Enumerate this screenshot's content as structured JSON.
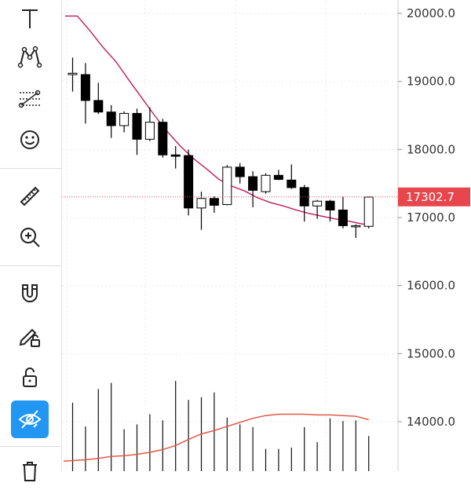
{
  "toolbar": {
    "tools": [
      {
        "name": "text-tool",
        "icon": "text-icon",
        "active": false
      },
      {
        "name": "pattern-tool",
        "icon": "xabcd-pattern-icon",
        "active": false
      },
      {
        "name": "prediction-tool",
        "icon": "forecast-icon",
        "active": false
      },
      {
        "name": "emoji-tool",
        "icon": "smiley-icon",
        "active": false
      },
      {
        "name": "measure-tool",
        "icon": "ruler-icon",
        "active": false
      },
      {
        "name": "zoom-tool",
        "icon": "zoom-in-icon",
        "active": false
      },
      {
        "name": "magnet-tool",
        "icon": "magnet-icon",
        "active": false
      },
      {
        "name": "lock-drawings-tool",
        "icon": "pencil-lock-icon",
        "active": false
      },
      {
        "name": "lock-all-tool",
        "icon": "unlock-icon",
        "active": false
      },
      {
        "name": "hide-drawings-tool",
        "icon": "eye-off-icon",
        "active": true
      },
      {
        "name": "delete-tool",
        "icon": "trash-icon",
        "active": false
      }
    ],
    "accent_color": "#2196f3"
  },
  "chart_data": {
    "type": "candlestick",
    "y_ticks": [
      "20000.0",
      "19000.0",
      "18000.0",
      "17000.0",
      "16000.0",
      "15000.0",
      "14000.0"
    ],
    "y_tick_values": [
      20000,
      19000,
      18000,
      17000,
      16000,
      15000,
      14000
    ],
    "ylim": [
      13350,
      20200
    ],
    "last_price": 17302.7,
    "last_price_label": "17302.7",
    "price_label_color": "#e8464d",
    "up_color": "#ffffff",
    "down_color": "#000000",
    "ma_color": "#c2185b",
    "volume_ma_color": "#e05a47",
    "grid": true,
    "candles": [
      {
        "o": 19100,
        "h": 19350,
        "l": 18850,
        "c": 19120
      },
      {
        "o": 19100,
        "h": 19270,
        "l": 18380,
        "c": 18720
      },
      {
        "o": 18720,
        "h": 18980,
        "l": 18520,
        "c": 18550
      },
      {
        "o": 18550,
        "h": 18650,
        "l": 18170,
        "c": 18350
      },
      {
        "o": 18350,
        "h": 18560,
        "l": 18250,
        "c": 18530
      },
      {
        "o": 18530,
        "h": 18600,
        "l": 17920,
        "c": 18150
      },
      {
        "o": 18150,
        "h": 18620,
        "l": 18120,
        "c": 18400
      },
      {
        "o": 18400,
        "h": 18450,
        "l": 17880,
        "c": 17920
      },
      {
        "o": 17920,
        "h": 18050,
        "l": 17720,
        "c": 17900
      },
      {
        "o": 17910,
        "h": 18000,
        "l": 17030,
        "c": 17140
      },
      {
        "o": 17140,
        "h": 17380,
        "l": 16820,
        "c": 17280
      },
      {
        "o": 17280,
        "h": 17310,
        "l": 17070,
        "c": 17180
      },
      {
        "o": 17190,
        "h": 17770,
        "l": 17180,
        "c": 17740
      },
      {
        "o": 17740,
        "h": 17800,
        "l": 17500,
        "c": 17600
      },
      {
        "o": 17600,
        "h": 17680,
        "l": 17150,
        "c": 17400
      },
      {
        "o": 17380,
        "h": 17650,
        "l": 17350,
        "c": 17620
      },
      {
        "o": 17620,
        "h": 17700,
        "l": 17550,
        "c": 17560
      },
      {
        "o": 17550,
        "h": 17780,
        "l": 17420,
        "c": 17440
      },
      {
        "o": 17440,
        "h": 17480,
        "l": 16940,
        "c": 17170
      },
      {
        "o": 17170,
        "h": 17260,
        "l": 16980,
        "c": 17240
      },
      {
        "o": 17240,
        "h": 17260,
        "l": 16940,
        "c": 17110
      },
      {
        "o": 17110,
        "h": 17310,
        "l": 16840,
        "c": 16880
      },
      {
        "o": 16880,
        "h": 16900,
        "l": 16700,
        "c": 16880
      },
      {
        "o": 16870,
        "h": 17310,
        "l": 16840,
        "c": 17300
      }
    ],
    "ma": [
      19960,
      19740,
      19500,
      19290,
      19020,
      18760,
      18500,
      18260,
      18050,
      17870,
      17720,
      17560,
      17460,
      17390,
      17290,
      17220,
      17170,
      17110,
      17060,
      17020,
      16980,
      16950,
      16910,
      16880
    ],
    "ma_x_start": 19960,
    "volume": [
      14280,
      13930,
      14480,
      14570,
      13890,
      13960,
      14110,
      14020,
      14600,
      14320,
      14360,
      14430,
      14060,
      13960,
      13920,
      13600,
      13600,
      13620,
      13920,
      13700,
      14050,
      14010,
      14020,
      13790
    ],
    "volume_ma": [
      13420,
      13440,
      13460,
      13490,
      13500,
      13520,
      13550,
      13590,
      13650,
      13740,
      13820,
      13870,
      13930,
      13990,
      14050,
      14090,
      14110,
      14110,
      14110,
      14100,
      14100,
      14090,
      14080,
      14030
    ]
  }
}
